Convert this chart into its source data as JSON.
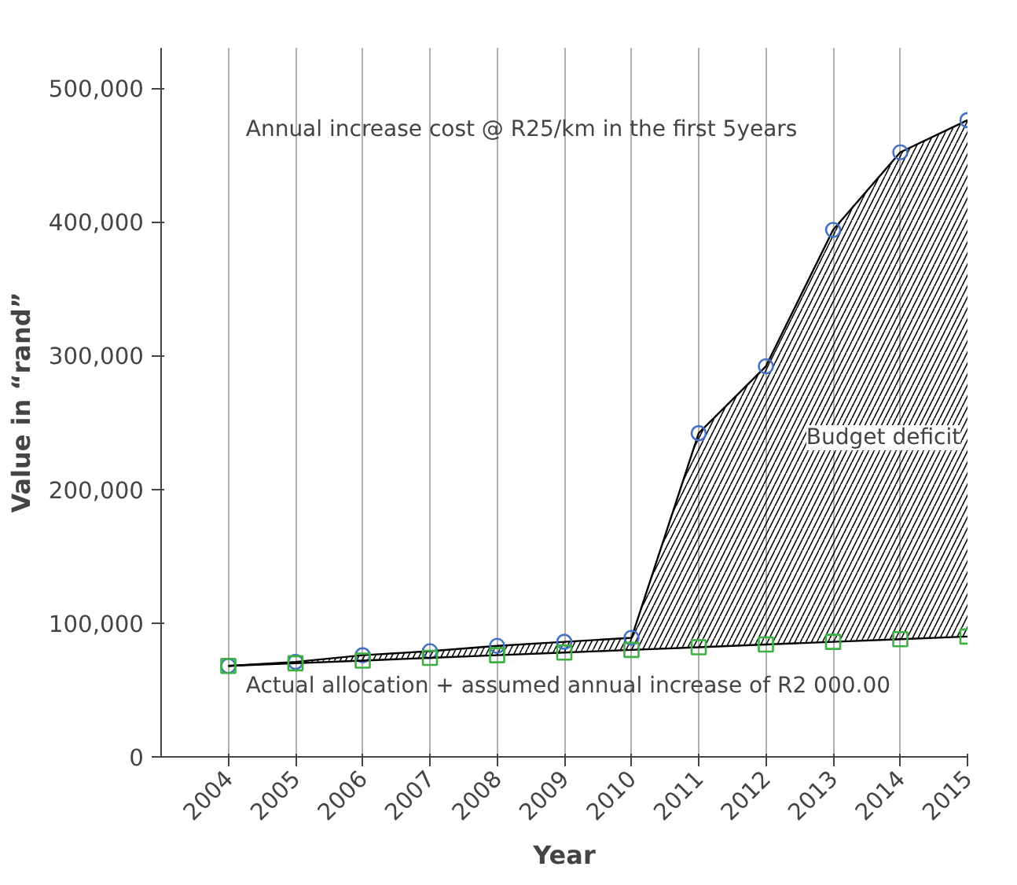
{
  "chart_data": {
    "type": "line",
    "xlabel": "Year",
    "ylabel": "Value in “rand”",
    "x": [
      2004,
      2005,
      2006,
      2007,
      2008,
      2009,
      2010,
      2011,
      2012,
      2013,
      2014,
      2015
    ],
    "series": [
      {
        "color": "#4472c4",
        "marker": "circle",
        "values": [
          68000,
          71000,
          76000,
          79000,
          83000,
          86000,
          89000,
          242000,
          292000,
          394000,
          452000,
          476000
        ],
        "lower": [
          68000,
          70000,
          72000,
          74000,
          76000,
          78000,
          80000,
          82000,
          84000,
          86000,
          88000,
          90000
        ],
        "upper": [
          68000,
          71000,
          76000,
          79000,
          83000,
          86000,
          89000,
          242000,
          292000,
          394000,
          452000,
          476000
        ]
      },
      {
        "color": "#3cb043",
        "marker": "square",
        "values": [
          68000,
          70000,
          72000,
          74000,
          76000,
          78000,
          80000,
          82000,
          84000,
          86000,
          88000,
          90000
        ]
      }
    ],
    "xlim": [
      2003,
      2015
    ],
    "ylim": [
      0,
      530000
    ],
    "xticks": [
      2004,
      2005,
      2006,
      2007,
      2008,
      2009,
      2010,
      2011,
      2012,
      2013,
      2014,
      2015
    ],
    "yticks": [
      0,
      {
        "value": 100000,
        "label": "100,000"
      },
      {
        "value": 200000,
        "label": "200,000"
      },
      {
        "value": 300000,
        "label": "300,000"
      },
      {
        "value": 400000,
        "label": "400,000"
      },
      {
        "value": 500000,
        "label": "500,000"
      }
    ],
    "grid": "x",
    "annotations": [
      "Annual increase cost @ R25/km in the first 5years",
      "Budget deficit",
      "Actual allocation + assumed annual increase of R2 000.00"
    ]
  }
}
